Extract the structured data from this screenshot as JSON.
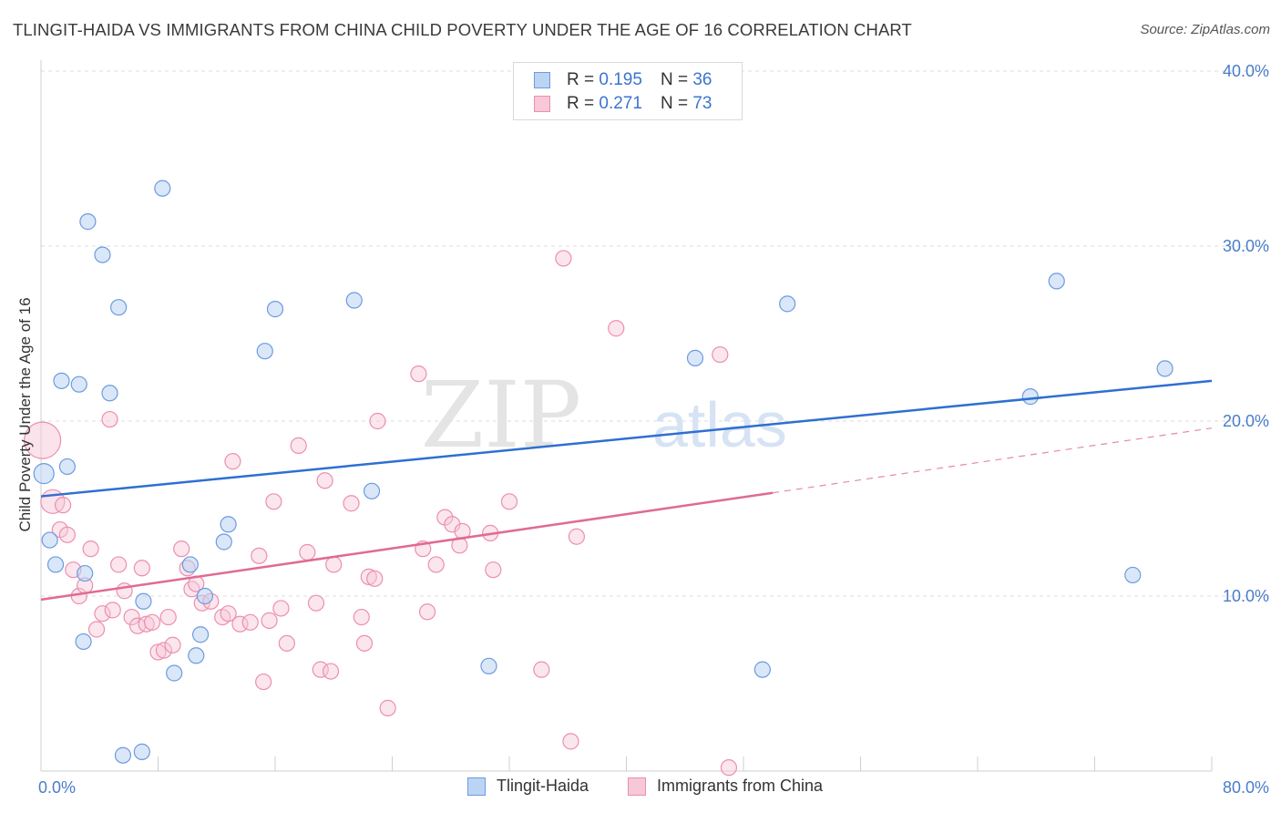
{
  "title": "TLINGIT-HAIDA VS IMMIGRANTS FROM CHINA CHILD POVERTY UNDER THE AGE OF 16 CORRELATION CHART",
  "source": "Source: ZipAtlas.com",
  "watermark": {
    "zip": "ZIP",
    "atlas": "atlas"
  },
  "colors": {
    "blue_fill": "#bcd4f3",
    "blue_stroke": "#6b9be0",
    "blue_line": "#2f6fd0",
    "pink_fill": "#f7c8d7",
    "pink_stroke": "#ec8fae",
    "pink_line": "#e06a95",
    "grid": "#dcdcdc",
    "tick_label": "#4a7cc9"
  },
  "legend_top": {
    "rows": [
      {
        "r_label": "R =",
        "r_value": "0.195",
        "n_label": "N =",
        "n_value": "36"
      },
      {
        "r_label": "R =",
        "r_value": "0.271",
        "n_label": "N =",
        "n_value": "73"
      }
    ]
  },
  "legend_bottom": [
    "Tlingit-Haida",
    "Immigrants from China"
  ],
  "chart_data": {
    "type": "scatter",
    "title": "TLINGIT-HAIDA VS IMMIGRANTS FROM CHINA CHILD POVERTY UNDER THE AGE OF 16 CORRELATION CHART",
    "xlabel": "",
    "ylabel": "Child Poverty Under the Age of 16",
    "xlim": [
      0,
      80
    ],
    "ylim": [
      0,
      40
    ],
    "x_ticks": [
      "0.0%",
      "80.0%"
    ],
    "y_ticks": [
      "10.0%",
      "20.0%",
      "30.0%",
      "40.0%"
    ],
    "y_tick_values": [
      10,
      20,
      30,
      40
    ],
    "grid": true,
    "legend_position": "top-center",
    "series": [
      {
        "name": "Tlingit-Haida",
        "trend": {
          "x0": 0,
          "y0": 15.7,
          "x1": 80,
          "y1": 22.3
        },
        "points": [
          [
            0.2,
            17.0
          ],
          [
            0.6,
            13.2
          ],
          [
            1.0,
            11.8
          ],
          [
            1.4,
            22.3
          ],
          [
            1.8,
            17.4
          ],
          [
            2.6,
            22.1
          ],
          [
            2.9,
            7.4
          ],
          [
            3.0,
            11.3
          ],
          [
            3.2,
            31.4
          ],
          [
            4.2,
            29.5
          ],
          [
            4.7,
            21.6
          ],
          [
            5.3,
            26.5
          ],
          [
            5.6,
            0.9
          ],
          [
            6.9,
            1.1
          ],
          [
            7.0,
            9.7
          ],
          [
            8.3,
            33.3
          ],
          [
            9.1,
            5.6
          ],
          [
            10.2,
            11.8
          ],
          [
            10.6,
            6.6
          ],
          [
            10.9,
            7.8
          ],
          [
            11.2,
            10.0
          ],
          [
            12.5,
            13.1
          ],
          [
            12.8,
            14.1
          ],
          [
            15.3,
            24.0
          ],
          [
            16.0,
            26.4
          ],
          [
            21.4,
            26.9
          ],
          [
            22.6,
            16.0
          ],
          [
            30.6,
            6.0
          ],
          [
            34.0,
            39.9
          ],
          [
            44.7,
            23.6
          ],
          [
            49.3,
            5.8
          ],
          [
            51.0,
            26.7
          ],
          [
            67.6,
            21.4
          ],
          [
            69.4,
            28.0
          ],
          [
            74.6,
            11.2
          ],
          [
            76.8,
            23.0
          ]
        ]
      },
      {
        "name": "Immigrants from China",
        "trend": {
          "x0": 0,
          "y0": 9.8,
          "x1": 50,
          "y1": 15.9,
          "dashed_to_x": 80,
          "dashed_to_y": 19.6
        },
        "points": [
          [
            0.1,
            18.9
          ],
          [
            0.8,
            15.4
          ],
          [
            1.3,
            13.8
          ],
          [
            1.5,
            15.2
          ],
          [
            1.8,
            13.5
          ],
          [
            2.2,
            11.5
          ],
          [
            2.6,
            10.0
          ],
          [
            3.0,
            10.6
          ],
          [
            3.4,
            12.7
          ],
          [
            3.8,
            8.1
          ],
          [
            4.2,
            9.0
          ],
          [
            4.7,
            20.1
          ],
          [
            4.9,
            9.2
          ],
          [
            5.3,
            11.8
          ],
          [
            5.7,
            10.3
          ],
          [
            6.2,
            8.8
          ],
          [
            6.6,
            8.3
          ],
          [
            6.9,
            11.6
          ],
          [
            7.2,
            8.4
          ],
          [
            7.6,
            8.5
          ],
          [
            8.0,
            6.8
          ],
          [
            8.4,
            6.9
          ],
          [
            8.7,
            8.8
          ],
          [
            9.0,
            7.2
          ],
          [
            9.6,
            12.7
          ],
          [
            10.0,
            11.6
          ],
          [
            10.3,
            10.4
          ],
          [
            10.6,
            10.7
          ],
          [
            11.0,
            9.6
          ],
          [
            11.6,
            9.7
          ],
          [
            12.4,
            8.8
          ],
          [
            12.8,
            9.0
          ],
          [
            13.1,
            17.7
          ],
          [
            13.6,
            8.4
          ],
          [
            14.3,
            8.5
          ],
          [
            14.9,
            12.3
          ],
          [
            15.2,
            5.1
          ],
          [
            15.6,
            8.6
          ],
          [
            15.9,
            15.4
          ],
          [
            16.4,
            9.3
          ],
          [
            16.8,
            7.3
          ],
          [
            17.6,
            18.6
          ],
          [
            18.2,
            12.5
          ],
          [
            18.8,
            9.6
          ],
          [
            19.1,
            5.8
          ],
          [
            19.4,
            16.6
          ],
          [
            19.8,
            5.7
          ],
          [
            20.0,
            11.8
          ],
          [
            21.2,
            15.3
          ],
          [
            21.9,
            8.8
          ],
          [
            22.1,
            7.3
          ],
          [
            22.4,
            11.1
          ],
          [
            22.8,
            11.0
          ],
          [
            23.0,
            20.0
          ],
          [
            23.7,
            3.6
          ],
          [
            25.8,
            22.7
          ],
          [
            26.1,
            12.7
          ],
          [
            26.4,
            9.1
          ],
          [
            27.0,
            11.8
          ],
          [
            27.6,
            14.5
          ],
          [
            28.1,
            14.1
          ],
          [
            28.6,
            12.9
          ],
          [
            28.8,
            13.7
          ],
          [
            30.7,
            13.6
          ],
          [
            30.9,
            11.5
          ],
          [
            32.0,
            15.4
          ],
          [
            34.2,
            5.8
          ],
          [
            35.7,
            29.3
          ],
          [
            36.2,
            1.7
          ],
          [
            36.6,
            13.4
          ],
          [
            39.3,
            25.3
          ],
          [
            46.4,
            23.8
          ],
          [
            47.0,
            0.2
          ]
        ]
      }
    ]
  }
}
